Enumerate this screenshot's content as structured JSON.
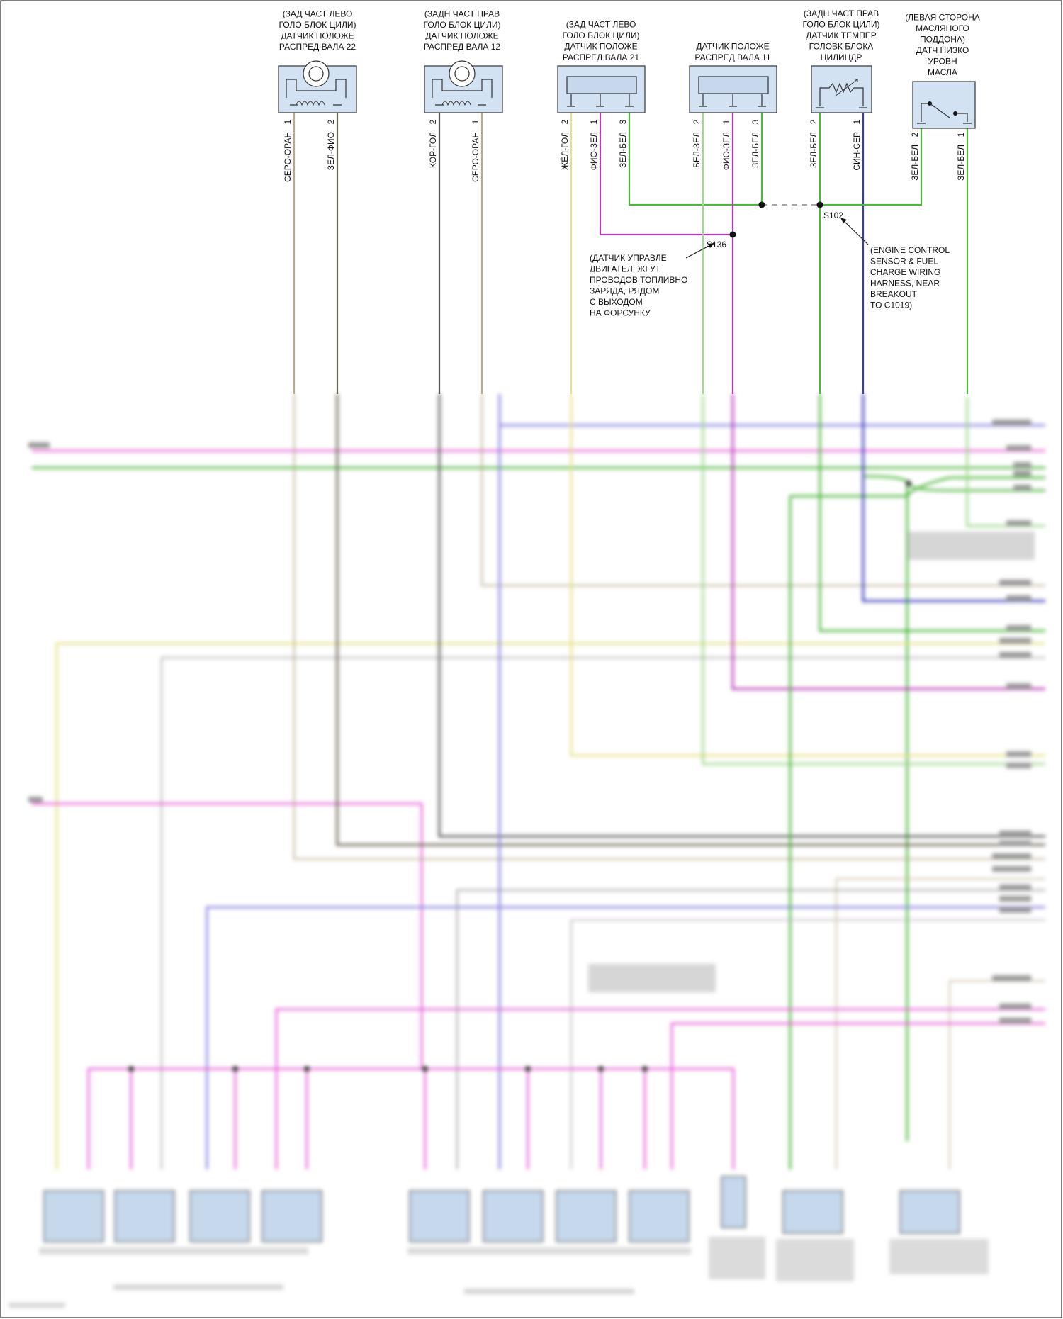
{
  "top_components": [
    {
      "id": "cmp22",
      "title_lines": [
        "(ЗАД ЧАСТ ЛЕВО",
        "ГОЛО БЛОК ЦИЛИ)",
        "ДАТЧИК ПОЛОЖЕ",
        "РАСПРЕД ВАЛА 22"
      ],
      "pins": [
        {
          "num": "1",
          "wire": "СЕРО-ОРАН"
        },
        {
          "num": "2",
          "wire": "ЗЕЛ-ФИО"
        }
      ]
    },
    {
      "id": "cmp12",
      "title_lines": [
        "(ЗАДН ЧАСТ ПРАВ",
        "ГОЛО БЛОК ЦИЛИ)",
        "ДАТЧИК ПОЛОЖЕ",
        "РАСПРЕД ВАЛА 12"
      ],
      "pins": [
        {
          "num": "2",
          "wire": "КОР-ГОЛ"
        },
        {
          "num": "1",
          "wire": "СЕРО-ОРАН"
        }
      ]
    },
    {
      "id": "cmp21",
      "title_lines": [
        "(ЗАД ЧАСТ ЛЕВО",
        "ГОЛО БЛОК ЦИЛИ)",
        "ДАТЧИК ПОЛОЖЕ",
        "РАСПРЕД ВАЛА 21"
      ],
      "pins": [
        {
          "num": "2",
          "wire": "ЖЁЛ-ГОЛ"
        },
        {
          "num": "1",
          "wire": "ФИО-ЗЕЛ"
        },
        {
          "num": "3",
          "wire": "ЗЕЛ-БЕЛ"
        }
      ]
    },
    {
      "id": "cmp11",
      "title_lines": [
        "ДАТЧИК ПОЛОЖЕ",
        "РАСПРЕД ВАЛА 11"
      ],
      "pins": [
        {
          "num": "2",
          "wire": "БЕЛ-ЗЕЛ"
        },
        {
          "num": "1",
          "wire": "ФИО-ЗЕЛ"
        },
        {
          "num": "3",
          "wire": "ЗЕЛ-БЕЛ"
        }
      ]
    },
    {
      "id": "cmpTemp",
      "title_lines": [
        "(ЗАДН ЧАСТ ПРАВ",
        "ГОЛО БЛОК ЦИЛИ)",
        "ДАТЧИК ТЕМПЕР",
        "ГОЛОВК БЛОКА",
        "ЦИЛИНДР"
      ],
      "pins": [
        {
          "num": "2",
          "wire": "ЗЕЛ-БЕЛ"
        },
        {
          "num": "1",
          "wire": "СИН-СЕР"
        }
      ]
    },
    {
      "id": "cmpOil",
      "title_lines": [
        "(ЛЕВАЯ СТОРОНА",
        "МАСЛЯНОГО",
        "ПОДДОНА)",
        "ДАТЧ НИЗКО",
        "УРОВН",
        "МАСЛА"
      ],
      "pins": [
        {
          "num": "2",
          "wire": "ЗЕЛ-БЕЛ"
        },
        {
          "num": "1",
          "wire": "ЗЕЛ-БЕЛ"
        }
      ]
    }
  ],
  "splices": [
    {
      "id": "S102",
      "label": "S102",
      "note_lines": [
        "(ENGINE CONTROL",
        "SENSOR & FUEL",
        "CHARGE WIRING",
        "HARNESS, NEAR",
        "BREAKOUT",
        "TO C1019)"
      ]
    },
    {
      "id": "S136",
      "label": "S136",
      "note_lines": [
        "(ДАТЧИК УПРАВЛЕ",
        "ДВИГАТЕЛ, ЖГУТ",
        "ПРОВОДОВ ТОПЛИВНО",
        "ЗАРЯДА, РЯДОМ",
        "С ВЫХОДОМ",
        "НА ФОРСУНКУ"
      ]
    }
  ],
  "colors": {
    "gray_orange": "#b8a98a",
    "green_violet": "#6b6650",
    "brown_blue": "#555555",
    "yellow_blue": "#e6e28a",
    "violet_green": "#b63bb5",
    "green_white": "#4fb53f",
    "white_green": "#9fd88e",
    "blue_gray": "#3a3ab8",
    "pink": "#e86ad8",
    "lavender": "#8a84e0",
    "component_fill": "#d2e2f2",
    "component_stroke": "#333333"
  }
}
